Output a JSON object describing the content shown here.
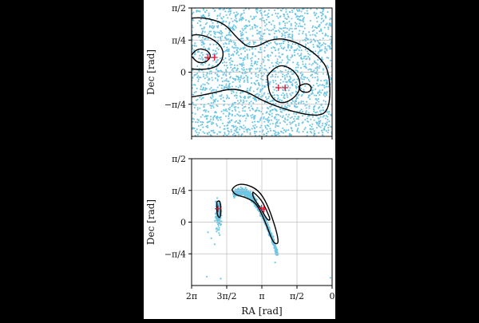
{
  "colors": {
    "points": "#6ec6e4",
    "contour": "#000000",
    "marker": "#e0102a",
    "grid": "#bfbfbf",
    "frame": "#000000"
  },
  "chart_data": [
    {
      "id": "top",
      "type": "scatter",
      "xlim": [
        3.1416,
        0
      ],
      "ylim": [
        -1.5708,
        1.5708
      ],
      "xticks": [
        3.1416,
        1.5708,
        0
      ],
      "xtick_labels": [
        "",
        "",
        ""
      ],
      "yticks": [
        1.5708,
        0.7854,
        0,
        -0.7854
      ],
      "ytick_labels": [
        "π/2",
        "π/4",
        "0",
        "−π/4"
      ],
      "ylabel": "Dec [rad]",
      "xlabel": "",
      "grid": true,
      "scatter_fill": "dense uniform cloud over full range",
      "contours": [
        [
          [
            4.66,
            0.55
          ],
          [
            3.8,
            0.95
          ],
          [
            3.3,
            1.3
          ],
          [
            2.9,
            1.35
          ],
          [
            2.4,
            1.2
          ],
          [
            2.1,
            0.8
          ],
          [
            1.8,
            0.55
          ],
          [
            1.3,
            0.85
          ],
          [
            0.8,
            0.75
          ],
          [
            0.3,
            0.4
          ],
          [
            0.05,
            0.0
          ],
          [
            0.05,
            -0.95
          ],
          [
            0.4,
            -1.1
          ],
          [
            1.4,
            -0.8
          ],
          [
            2.1,
            -0.35
          ],
          [
            2.8,
            -0.55
          ],
          [
            3.7,
            -0.7
          ],
          [
            4.3,
            -0.2
          ],
          [
            4.66,
            -1.05
          ]
        ],
        [
          [
            3.5,
            0.4
          ],
          [
            3.4,
            0.75
          ],
          [
            3.1,
            0.95
          ],
          [
            2.7,
            0.85
          ],
          [
            2.4,
            0.55
          ],
          [
            2.5,
            0.15
          ],
          [
            2.9,
            0.05
          ],
          [
            3.3,
            0.1
          ],
          [
            3.5,
            0.4
          ]
        ],
        [
          [
            3.15,
            0.4
          ],
          [
            3.05,
            0.58
          ],
          [
            2.8,
            0.55
          ],
          [
            2.7,
            0.4
          ],
          [
            2.8,
            0.25
          ],
          [
            3.0,
            0.22
          ],
          [
            3.15,
            0.4
          ]
        ],
        [
          [
            1.45,
            -0.1
          ],
          [
            1.25,
            0.2
          ],
          [
            0.9,
            0.1
          ],
          [
            0.7,
            -0.2
          ],
          [
            0.75,
            -0.55
          ],
          [
            1.1,
            -0.8
          ],
          [
            1.4,
            -0.6
          ],
          [
            1.45,
            -0.1
          ]
        ],
        [
          [
            0.75,
            -0.35
          ],
          [
            0.6,
            -0.25
          ],
          [
            0.45,
            -0.35
          ],
          [
            0.5,
            -0.5
          ],
          [
            0.7,
            -0.48
          ],
          [
            0.75,
            -0.35
          ]
        ]
      ],
      "markers": [
        [
          2.78,
          0.36
        ],
        [
          2.63,
          0.36
        ],
        [
          1.2,
          -0.38
        ],
        [
          1.05,
          -0.38
        ]
      ]
    },
    {
      "id": "bottom",
      "type": "scatter",
      "xlim": [
        6.2832,
        0
      ],
      "ylim": [
        -1.5708,
        1.5708
      ],
      "xticks": [
        6.2832,
        4.7124,
        3.1416,
        1.5708,
        0
      ],
      "xtick_labels": [
        "2π",
        "3π/2",
        "π",
        "π/2",
        "0"
      ],
      "yticks": [
        1.5708,
        0.7854,
        0,
        -0.7854
      ],
      "ytick_labels": [
        "π/2",
        "π/4",
        "0",
        "−π/4"
      ],
      "xlabel": "RA [rad]",
      "ylabel": "Dec [rad]",
      "grid": true,
      "scatter_fill": "two clusters: small blob near (5.1,0.3) and arc from (4.3,0.8) to (2.5,-0.8)",
      "contours": [
        [
          [
            4.48,
            0.8
          ],
          [
            4.35,
            0.92
          ],
          [
            3.9,
            0.95
          ],
          [
            3.3,
            0.8
          ],
          [
            2.9,
            0.45
          ],
          [
            2.55,
            -0.1
          ],
          [
            2.4,
            -0.45
          ],
          [
            2.45,
            -0.55
          ],
          [
            2.65,
            -0.5
          ],
          [
            2.95,
            -0.05
          ],
          [
            3.35,
            0.45
          ],
          [
            3.8,
            0.6
          ],
          [
            4.35,
            0.68
          ],
          [
            4.48,
            0.8
          ]
        ],
        [
          [
            3.55,
            0.75
          ],
          [
            3.2,
            0.6
          ],
          [
            2.9,
            0.25
          ],
          [
            2.75,
            0.05
          ],
          [
            2.9,
            0.05
          ],
          [
            3.2,
            0.35
          ],
          [
            3.55,
            0.62
          ],
          [
            3.55,
            0.75
          ]
        ],
        [
          [
            5.15,
            0.5
          ],
          [
            5.05,
            0.55
          ],
          [
            4.98,
            0.45
          ],
          [
            4.98,
            0.15
          ],
          [
            5.05,
            0.1
          ],
          [
            5.15,
            0.2
          ],
          [
            5.15,
            0.5
          ]
        ]
      ],
      "markers": [
        [
          5.1,
          0.33
        ],
        [
          3.15,
          0.35
        ],
        [
          3.05,
          0.32
        ]
      ]
    }
  ]
}
